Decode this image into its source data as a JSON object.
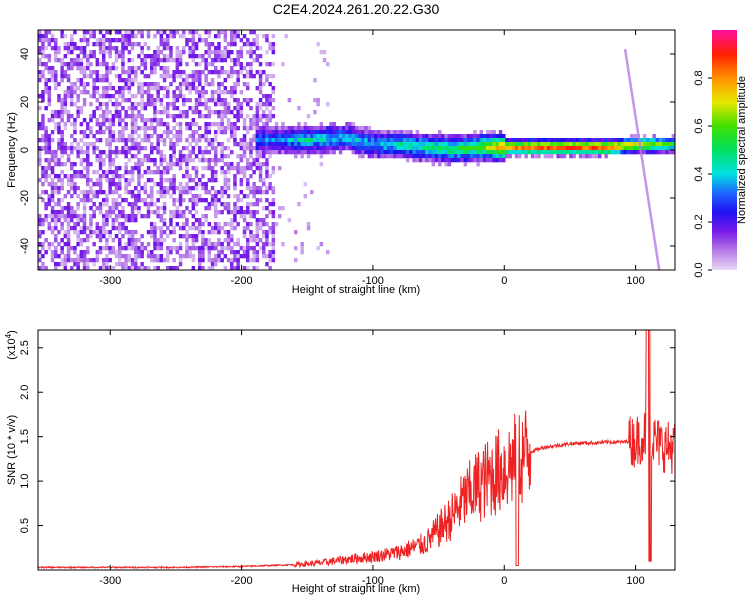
{
  "title": "C2E4.2024.261.20.22.G30",
  "chart_data": [
    {
      "type": "heatmap",
      "xlabel": "Height of straight line (km)",
      "ylabel": "Frequency (Hz)",
      "xlim": [
        -355,
        130
      ],
      "ylim": [
        -50,
        50
      ],
      "xticks": [
        -300,
        -200,
        -100,
        0,
        100
      ],
      "yticks": [
        -40,
        -20,
        0,
        20,
        40
      ],
      "colorbar": {
        "label": "Normalized spectral amplitude",
        "range": [
          0,
          1
        ],
        "ticks": [
          0.0,
          0.2,
          0.4,
          0.6,
          0.8
        ],
        "tick_labels": [
          "0.0",
          "0.2",
          "0.4",
          "0.6",
          "0.8"
        ]
      },
      "features": {
        "noise_region_x": [
          -355,
          -175
        ],
        "ridge": [
          {
            "x": -175,
            "freq": 5,
            "amp": 0.35
          },
          {
            "x": -150,
            "freq": 5,
            "amp": 0.45
          },
          {
            "x": -120,
            "freq": 6,
            "amp": 0.4
          },
          {
            "x": -100,
            "freq": 3,
            "amp": 0.4
          },
          {
            "x": -80,
            "freq": 3,
            "amp": 0.45
          },
          {
            "x": -60,
            "freq": 2,
            "amp": 0.5
          },
          {
            "x": -40,
            "freq": 1,
            "amp": 0.55
          },
          {
            "x": -20,
            "freq": 2,
            "amp": 0.6
          },
          {
            "x": 0,
            "freq": 2,
            "amp": 0.85
          },
          {
            "x": 40,
            "freq": 2,
            "amp": 0.95
          },
          {
            "x": 80,
            "freq": 2,
            "amp": 0.9
          },
          {
            "x": 100,
            "freq": 3,
            "amp": 0.75
          },
          {
            "x": 128,
            "freq": 3,
            "amp": 0.6
          }
        ],
        "diagonal_streak": {
          "from": [
            92,
            42
          ],
          "to": [
            118,
            -50
          ]
        }
      }
    },
    {
      "type": "line",
      "xlabel": "Height of straight line (km)",
      "ylabel": "SNR (10 * v/v)",
      "y_multiplier": "(x10",
      "y_exponent": "4",
      "y_multiplier_close": ")",
      "xlim": [
        -355,
        130
      ],
      "ylim": [
        0,
        2.7
      ],
      "xticks": [
        -300,
        -200,
        -100,
        0,
        100
      ],
      "yticks": [
        0.5,
        1.0,
        1.5,
        2.0,
        2.5
      ],
      "ytick_labels": [
        "0.5",
        "1.0",
        "1.5",
        "2.0",
        "2.5"
      ],
      "series": [
        {
          "color": "#ee2222",
          "x": [
            -355,
            -300,
            -250,
            -200,
            -180,
            -160,
            -140,
            -120,
            -100,
            -80,
            -60,
            -50,
            -40,
            -30,
            -20,
            -10,
            0,
            10,
            20,
            30,
            40,
            50,
            60,
            70,
            80,
            90,
            95,
            100,
            105,
            110,
            115,
            120,
            125,
            130
          ],
          "values": [
            0.03,
            0.03,
            0.03,
            0.04,
            0.05,
            0.06,
            0.08,
            0.12,
            0.15,
            0.2,
            0.3,
            0.45,
            0.6,
            0.8,
            0.95,
            1.05,
            1.15,
            1.25,
            1.33,
            1.38,
            1.4,
            1.42,
            1.43,
            1.43,
            1.44,
            1.44,
            1.45,
            1.45,
            1.5,
            1.55,
            1.45,
            1.4,
            1.38,
            1.38
          ]
        }
      ]
    }
  ]
}
